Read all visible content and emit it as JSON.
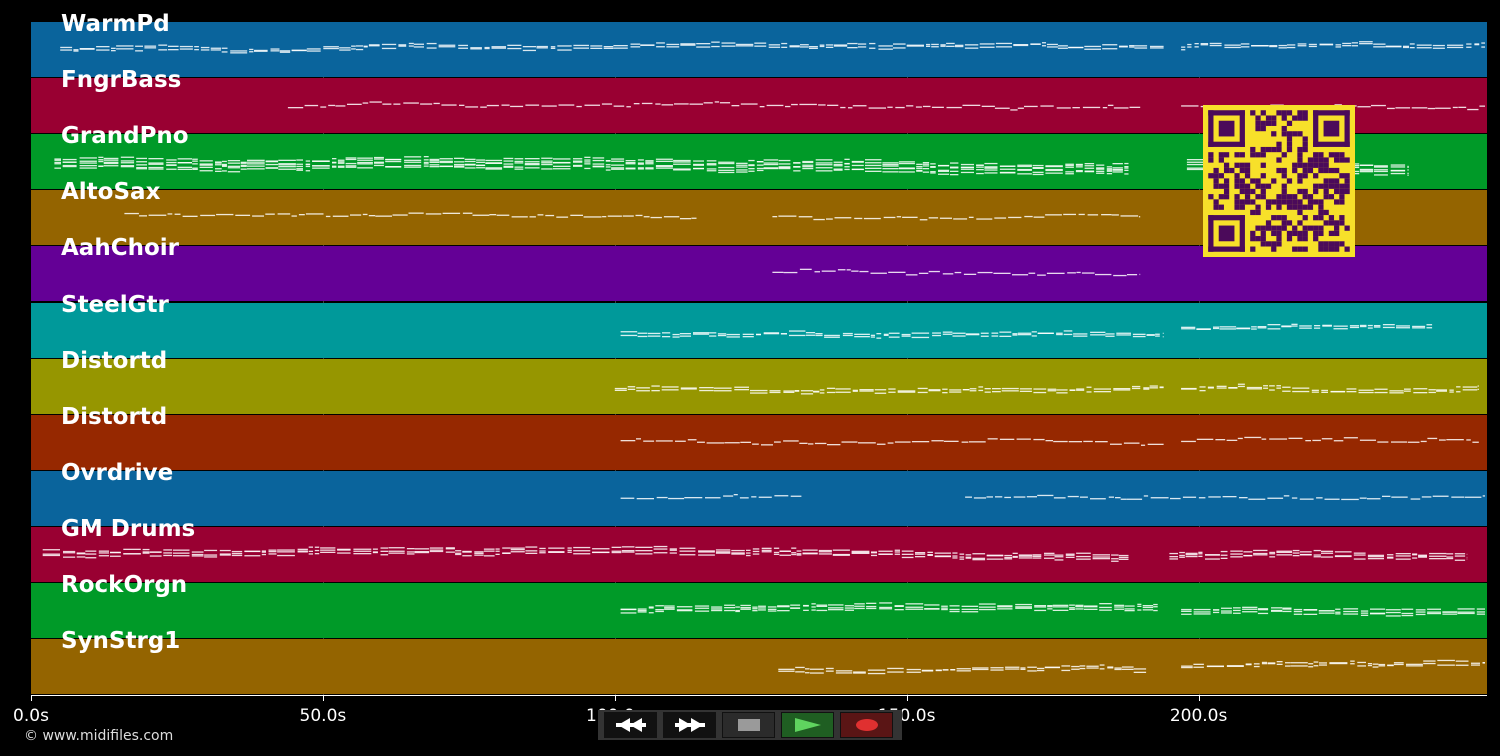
{
  "tracks": [
    {
      "name": "WarmPd",
      "color": "#0a649c",
      "notes": [
        [
          5,
          194,
          "#ffffff",
          2
        ],
        [
          197,
          250,
          "#ffffff",
          2
        ]
      ]
    },
    {
      "name": "FngrBass",
      "color": "#990032",
      "notes": [
        [
          44,
          190,
          "#ffffff",
          1
        ],
        [
          197,
          250,
          "#ffffff",
          1
        ]
      ]
    },
    {
      "name": "GrandPno",
      "color": "#009a28",
      "notes": [
        [
          4,
          188,
          "#ffffff",
          5
        ],
        [
          198,
          236,
          "#ffffff",
          5
        ]
      ]
    },
    {
      "name": "AltoSax",
      "color": "#946400",
      "notes": [
        [
          16,
          114,
          "#ffffff",
          1
        ],
        [
          127,
          190,
          "#ffffff",
          1
        ]
      ]
    },
    {
      "name": "AahChoir",
      "color": "#640096",
      "notes": [
        [
          127,
          190,
          "#ffffff",
          1
        ]
      ]
    },
    {
      "name": "SteelGtr",
      "color": "#00999a",
      "notes": [
        [
          101,
          194,
          "#ffffff",
          2
        ],
        [
          197,
          240,
          "#ffffff",
          2
        ]
      ]
    },
    {
      "name": "Distortd",
      "color": "#969600",
      "notes": [
        [
          100,
          194,
          "#ffffff",
          2
        ],
        [
          197,
          248,
          "#ffffff",
          2
        ]
      ]
    },
    {
      "name": "Distortd",
      "color": "#962800",
      "notes": [
        [
          101,
          194,
          "#ffffff",
          1
        ],
        [
          197,
          248,
          "#ffffff",
          1
        ]
      ]
    },
    {
      "name": "Ovrdrive",
      "color": "#0a649c",
      "notes": [
        [
          101,
          132,
          "#ffffff",
          1
        ],
        [
          160,
          250,
          "#ffffff",
          1
        ]
      ]
    },
    {
      "name": "GM Drums",
      "color": "#990032",
      "notes": [
        [
          2,
          188,
          "#ffffff",
          3
        ],
        [
          195,
          246,
          "#ffffff",
          3
        ]
      ]
    },
    {
      "name": "RockOrgn",
      "color": "#009a28",
      "notes": [
        [
          101,
          193,
          "#ffffff",
          3
        ],
        [
          197,
          250,
          "#ffffff",
          3
        ]
      ]
    },
    {
      "name": "SynStrg1",
      "color": "#946400",
      "notes": [
        [
          128,
          191,
          "#ffffff",
          2
        ],
        [
          197,
          250,
          "#ffffff",
          2
        ]
      ]
    }
  ],
  "axis": {
    "ticks": [
      {
        "value": 0,
        "label": "0.0s"
      },
      {
        "value": 50,
        "label": "50.0s"
      },
      {
        "value": 100,
        "label": "100.0s"
      },
      {
        "value": 150,
        "label": "150.0s"
      },
      {
        "value": 200,
        "label": "200.0s"
      }
    ],
    "range": [
      0,
      250
    ]
  },
  "copyright": "© www.midifiles.com",
  "transport": {
    "rewind": "rewind-icon",
    "forward": "fast-forward-icon",
    "stop": "stop-icon",
    "play": "play-icon",
    "record": "record-icon"
  },
  "qr": "qr-code"
}
